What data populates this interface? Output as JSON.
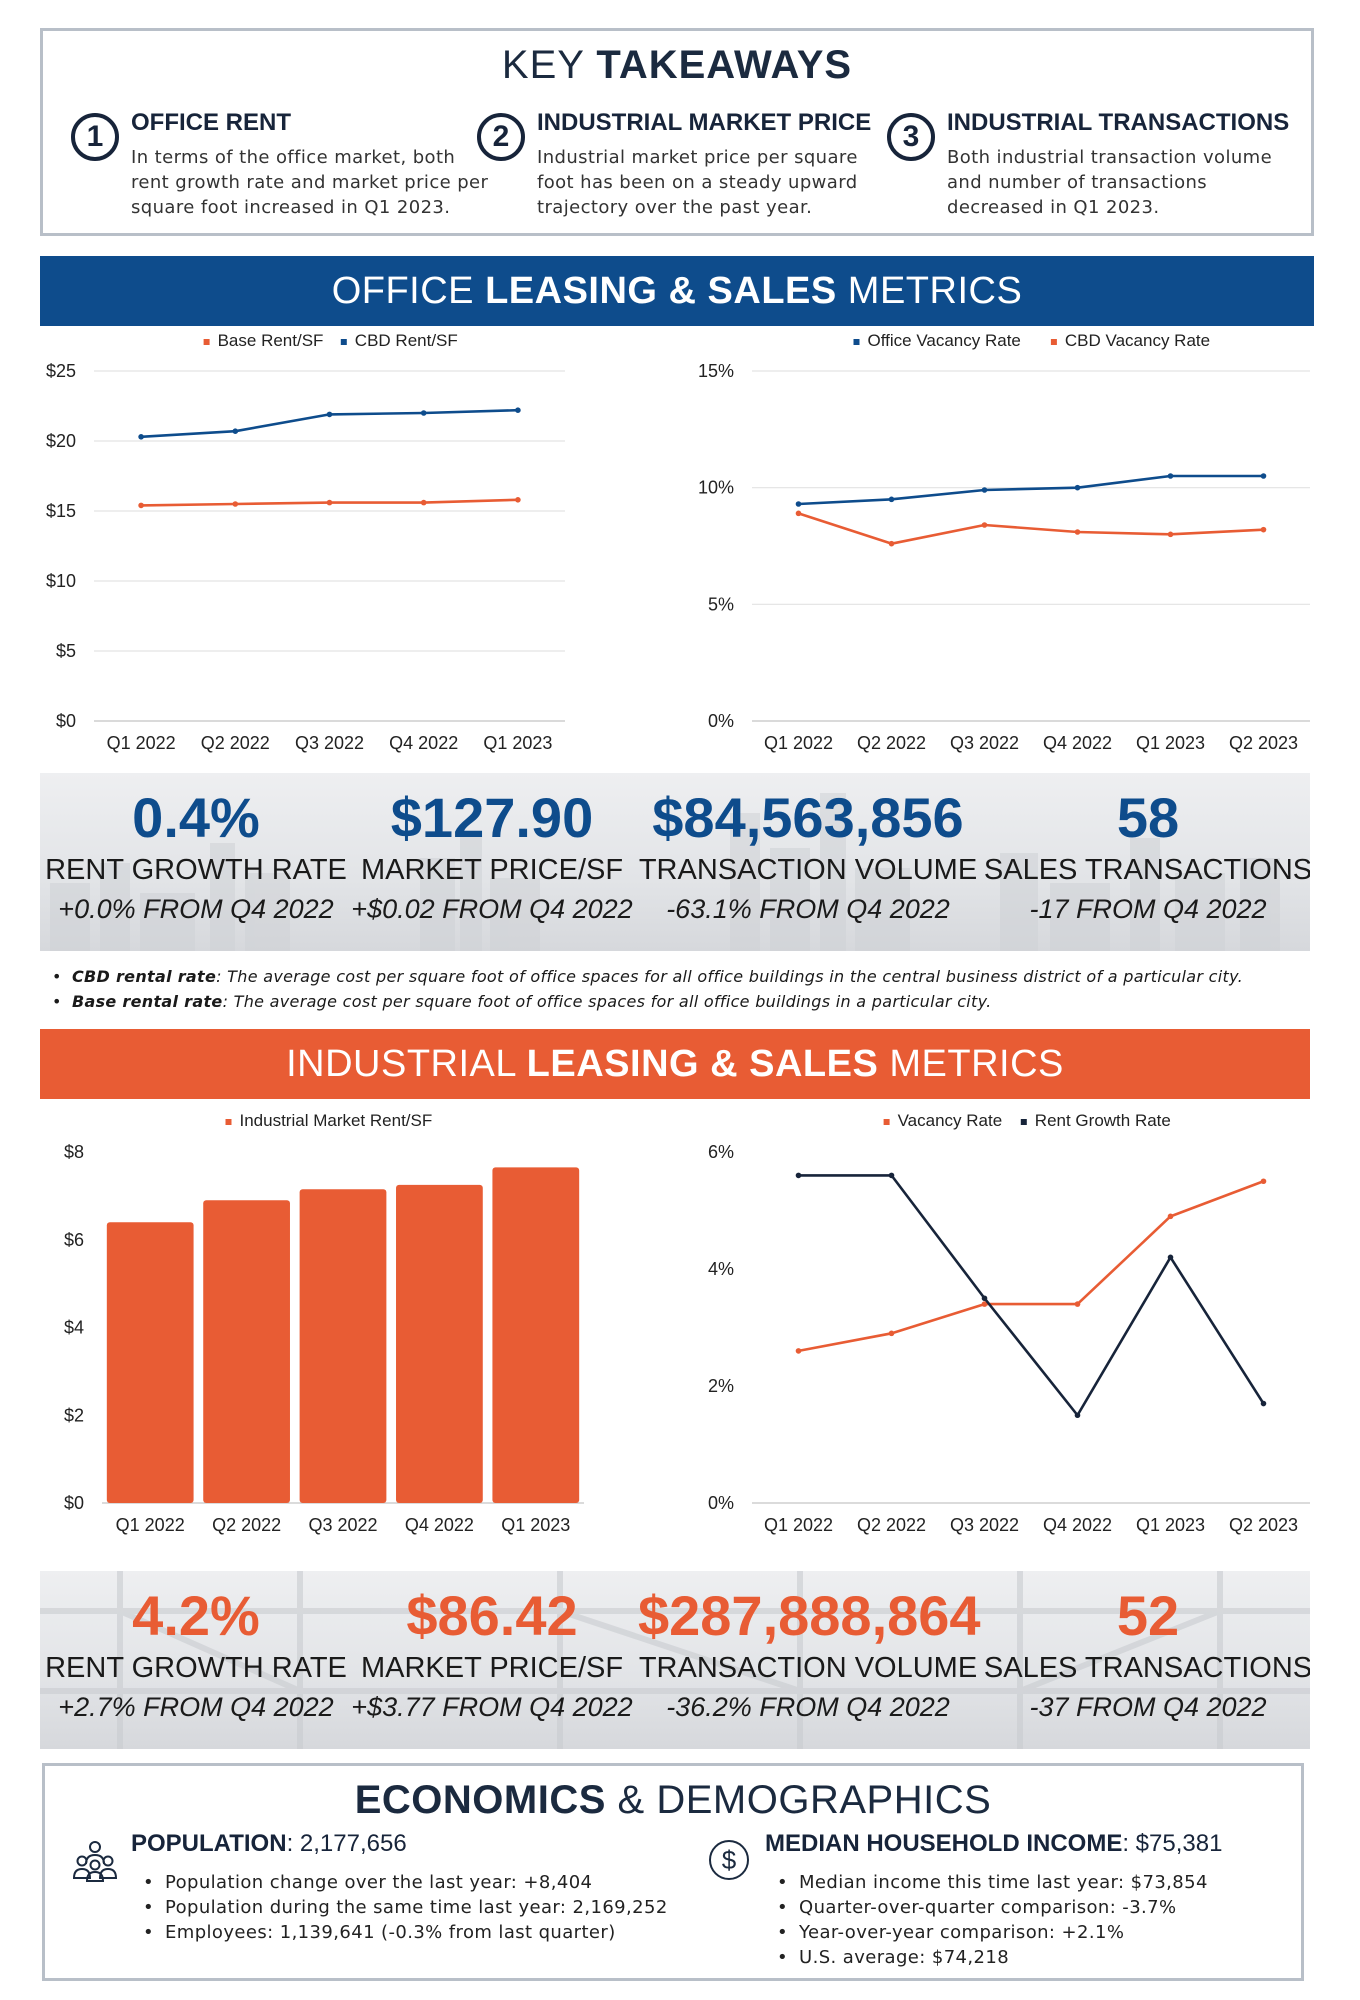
{
  "takeaways": {
    "title_light": "KEY ",
    "title_bold": "TAKEAWAYS",
    "items": [
      {
        "num": "1",
        "heading": "OFFICE RENT",
        "body": "In terms of the office market, both rent growth rate and market price per square foot increased in Q1 2023."
      },
      {
        "num": "2",
        "heading": "INDUSTRIAL MARKET PRICE",
        "body": "Industrial market price per square foot has been on a steady upward trajectory over the past year."
      },
      {
        "num": "3",
        "heading": "INDUSTRIAL TRANSACTIONS",
        "body": "Both industrial transaction volume and number of transactions decreased in Q1 2023."
      }
    ]
  },
  "office_banner": {
    "pre": "OFFICE ",
    "bold": "LEASING & SALES",
    "post": " METRICS"
  },
  "industrial_banner": {
    "pre": "INDUSTRIAL ",
    "bold": "LEASING & SALES",
    "post": " METRICS"
  },
  "colors": {
    "navy": "#0e4c8c",
    "orange": "#e85c34",
    "dark_navy": "#17243a",
    "grid": "#e3e3e3"
  },
  "chart_data": [
    {
      "id": "office_rent",
      "type": "line",
      "categories": [
        "Q1 2022",
        "Q2 2022",
        "Q3 2022",
        "Q4 2022",
        "Q1 2023"
      ],
      "series": [
        {
          "name": "Base Rent/SF",
          "color": "#e85c34",
          "values": [
            15.4,
            15.5,
            15.6,
            15.6,
            15.8
          ]
        },
        {
          "name": "CBD Rent/SF",
          "color": "#0e4c8c",
          "values": [
            20.3,
            20.7,
            21.9,
            22.0,
            22.2
          ]
        }
      ],
      "ylim": [
        0,
        25
      ],
      "yticks": [
        0,
        5,
        10,
        15,
        20,
        25
      ],
      "ytick_labels": [
        "$0",
        "$5",
        "$10",
        "$15",
        "$20",
        "$25"
      ],
      "grid": true,
      "legend": "top-center"
    },
    {
      "id": "office_vacancy",
      "type": "line",
      "categories": [
        "Q1 2022",
        "Q2 2022",
        "Q3 2022",
        "Q4 2022",
        "Q1 2023",
        "Q2 2023"
      ],
      "series": [
        {
          "name": "Office Vacancy Rate",
          "color": "#0e4c8c",
          "values": [
            9.3,
            9.5,
            9.9,
            10.0,
            10.5,
            10.5
          ]
        },
        {
          "name": "CBD Vacancy Rate",
          "color": "#e85c34",
          "values": [
            8.9,
            7.6,
            8.4,
            8.1,
            8.0,
            8.2
          ]
        }
      ],
      "ylim": [
        0,
        15
      ],
      "yticks": [
        0,
        5,
        10,
        15
      ],
      "ytick_labels": [
        "0%",
        "5%",
        "10%",
        "15%"
      ],
      "grid": true,
      "legend": "top-center"
    },
    {
      "id": "industrial_rent",
      "type": "bar",
      "categories": [
        "Q1 2022",
        "Q2 2022",
        "Q3 2022",
        "Q4 2022",
        "Q1 2023"
      ],
      "series": [
        {
          "name": "Industrial Market Rent/SF",
          "color": "#e85c34",
          "values": [
            6.4,
            6.9,
            7.15,
            7.25,
            7.65
          ]
        }
      ],
      "ylim": [
        0,
        8
      ],
      "yticks": [
        0,
        2,
        4,
        6,
        8
      ],
      "ytick_labels": [
        "$0",
        "$2",
        "$4",
        "$6",
        "$8"
      ],
      "grid": false,
      "legend": "top-center"
    },
    {
      "id": "industrial_rates",
      "type": "line",
      "categories": [
        "Q1 2022",
        "Q2 2022",
        "Q3 2022",
        "Q4 2022",
        "Q1 2023",
        "Q2 2023"
      ],
      "series": [
        {
          "name": "Vacancy Rate",
          "color": "#e85c34",
          "values": [
            2.6,
            2.9,
            3.4,
            3.4,
            4.9,
            5.5
          ]
        },
        {
          "name": "Rent Growth Rate",
          "color": "#17243a",
          "values": [
            5.6,
            5.6,
            3.5,
            1.5,
            4.2,
            1.7
          ]
        }
      ],
      "ylim": [
        0,
        6
      ],
      "yticks": [
        0,
        2,
        4,
        6
      ],
      "ytick_labels": [
        "0%",
        "2%",
        "4%",
        "6%"
      ],
      "grid": false,
      "legend": "top-center"
    }
  ],
  "office_metrics": [
    {
      "value": "0.4%",
      "label": "RENT GROWTH RATE",
      "change": "+0.0% FROM Q4 2022"
    },
    {
      "value": "$127.90",
      "label": "MARKET PRICE/SF",
      "change": "+$0.02 FROM Q4 2022"
    },
    {
      "value": "$84,563,856",
      "label": "TRANSACTION VOLUME",
      "change": "-63.1% FROM Q4 2022"
    },
    {
      "value": "58",
      "label": "SALES TRANSACTIONS",
      "change": "-17 FROM Q4 2022"
    }
  ],
  "definitions": [
    {
      "term": "CBD rental rate",
      "text": ": The average cost per square foot of office spaces for all office buildings in the central business district of a particular city."
    },
    {
      "term": "Base rental rate",
      "text": ": The average cost per square foot of office spaces for all office buildings in a particular city."
    }
  ],
  "industrial_metrics": [
    {
      "value": "4.2%",
      "label": "RENT GROWTH RATE",
      "change": "+2.7% FROM Q4 2022"
    },
    {
      "value": "$86.42",
      "label": "MARKET PRICE/SF",
      "change": "+$3.77 FROM Q4 2022"
    },
    {
      "value": "$287,888,864",
      "label": "TRANSACTION VOLUME",
      "change": "-36.2% FROM Q4 2022"
    },
    {
      "value": "52",
      "label": "SALES TRANSACTIONS",
      "change": "-37 FROM Q4 2022"
    }
  ],
  "economics": {
    "title_bold": "ECONOMICS",
    "title_light": " & DEMOGRAPHICS",
    "population": {
      "icon": "people-icon",
      "label": "POPULATION",
      "value": ": 2,177,656",
      "bullets": [
        "Population change over the last year: +8,404",
        "Population during the same time last year: 2,169,252",
        "Employees: 1,139,641 (-0.3% from last quarter)"
      ]
    },
    "income": {
      "icon": "dollar-icon",
      "label": "MEDIAN HOUSEHOLD INCOME",
      "value": ": $75,381",
      "bullets": [
        "Median income this time last year: $73,854",
        "Quarter-over-quarter comparison: -3.7%",
        "Year-over-year comparison: +2.1%",
        "U.S. average: $74,218"
      ]
    }
  }
}
